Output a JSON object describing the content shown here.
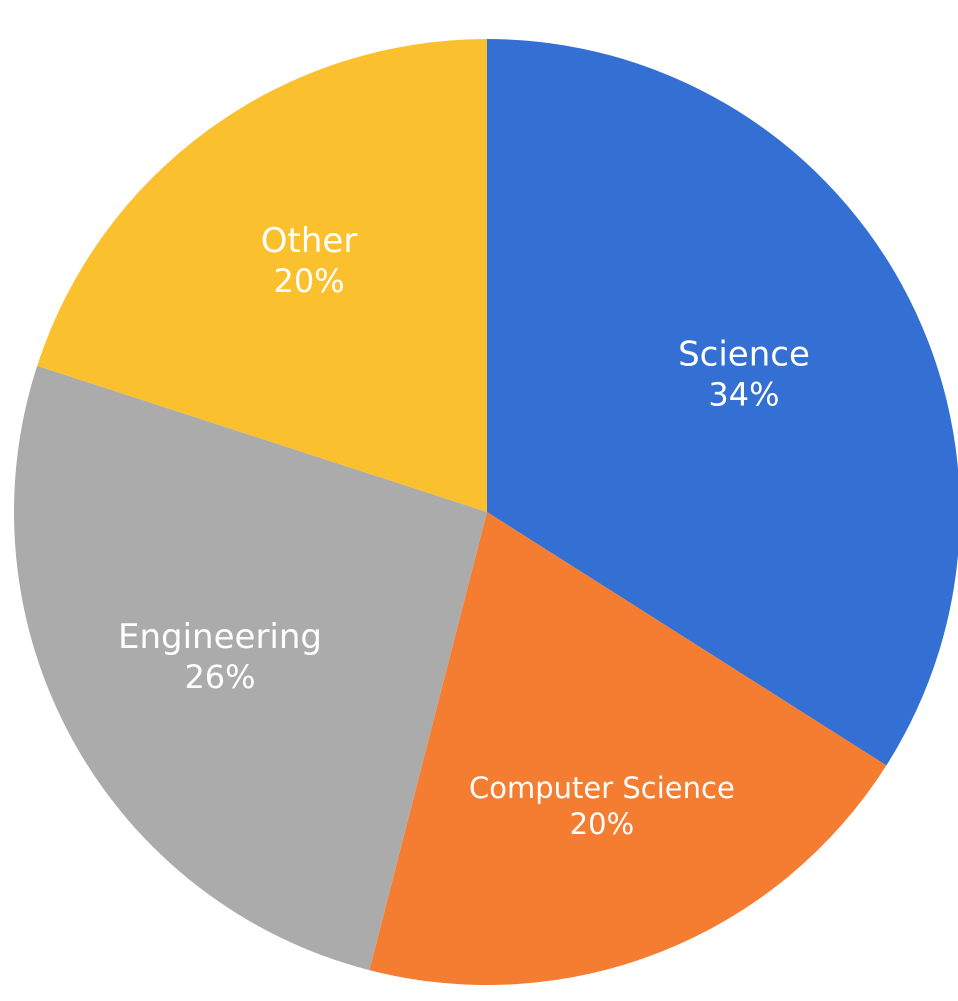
{
  "chart_data": {
    "type": "pie",
    "title": "",
    "slices": [
      {
        "label": "Science",
        "value": 34,
        "display": "34%",
        "color": "#3470d3"
      },
      {
        "label": "Computer Science",
        "value": 20,
        "display": "20%",
        "color": "#f47d32"
      },
      {
        "label": "Engineering",
        "value": 26,
        "display": "26%",
        "color": "#ababab"
      },
      {
        "label": "Other",
        "value": 20,
        "display": "20%",
        "color": "#fbc02d"
      }
    ],
    "start": "top",
    "direction": "clockwise",
    "legend": "none",
    "data_labels": "inside"
  }
}
